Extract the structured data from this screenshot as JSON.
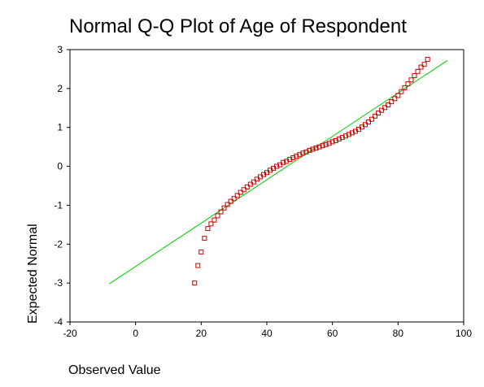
{
  "chart_data": {
    "type": "scatter",
    "title": "Normal Q-Q Plot of Age of Respondent",
    "xlabel": "Observed Value",
    "ylabel": "Expected Normal",
    "xlim": [
      -20,
      100
    ],
    "ylim": [
      -4,
      3
    ],
    "xticks": [
      -20,
      0,
      20,
      40,
      60,
      80,
      100
    ],
    "yticks": [
      3,
      2,
      1,
      0,
      -1,
      -2,
      -3,
      -4
    ],
    "grid": false,
    "colors": {
      "points": "#cc0000",
      "reference_line": "#00cc00"
    },
    "reference_line": {
      "x": [
        -8,
        95
      ],
      "y": [
        -3.02,
        2.72
      ]
    },
    "series": [
      {
        "x": [
          18,
          19,
          20,
          21,
          22,
          23,
          24,
          25,
          26,
          27,
          28,
          29,
          30,
          31,
          32,
          33,
          34,
          35,
          36,
          37,
          38,
          39,
          40,
          41,
          42,
          43,
          44,
          45,
          46,
          47,
          48,
          49,
          50,
          51,
          52,
          53,
          54,
          55,
          56,
          57,
          58,
          59,
          60,
          61,
          62,
          63,
          64,
          65,
          66,
          67,
          68,
          69,
          70,
          71,
          72,
          73,
          74,
          75,
          76,
          77,
          78,
          79,
          80,
          81,
          82,
          83,
          84,
          85,
          86,
          87,
          88,
          89
        ],
        "y": [
          -3.0,
          -2.55,
          -2.2,
          -1.85,
          -1.6,
          -1.48,
          -1.38,
          -1.27,
          -1.17,
          -1.07,
          -0.98,
          -0.9,
          -0.83,
          -0.75,
          -0.67,
          -0.6,
          -0.53,
          -0.46,
          -0.4,
          -0.33,
          -0.27,
          -0.21,
          -0.16,
          -0.1,
          -0.05,
          0.0,
          0.04,
          0.1,
          0.13,
          0.18,
          0.22,
          0.26,
          0.3,
          0.34,
          0.37,
          0.41,
          0.44,
          0.47,
          0.5,
          0.53,
          0.56,
          0.59,
          0.63,
          0.66,
          0.7,
          0.74,
          0.78,
          0.82,
          0.86,
          0.9,
          0.95,
          1.01,
          1.07,
          1.14,
          1.21,
          1.29,
          1.37,
          1.44,
          1.51,
          1.58,
          1.66,
          1.74,
          1.82,
          1.92,
          2.02,
          2.12,
          2.22,
          2.33,
          2.44,
          2.55,
          2.62,
          2.75
        ]
      }
    ]
  }
}
